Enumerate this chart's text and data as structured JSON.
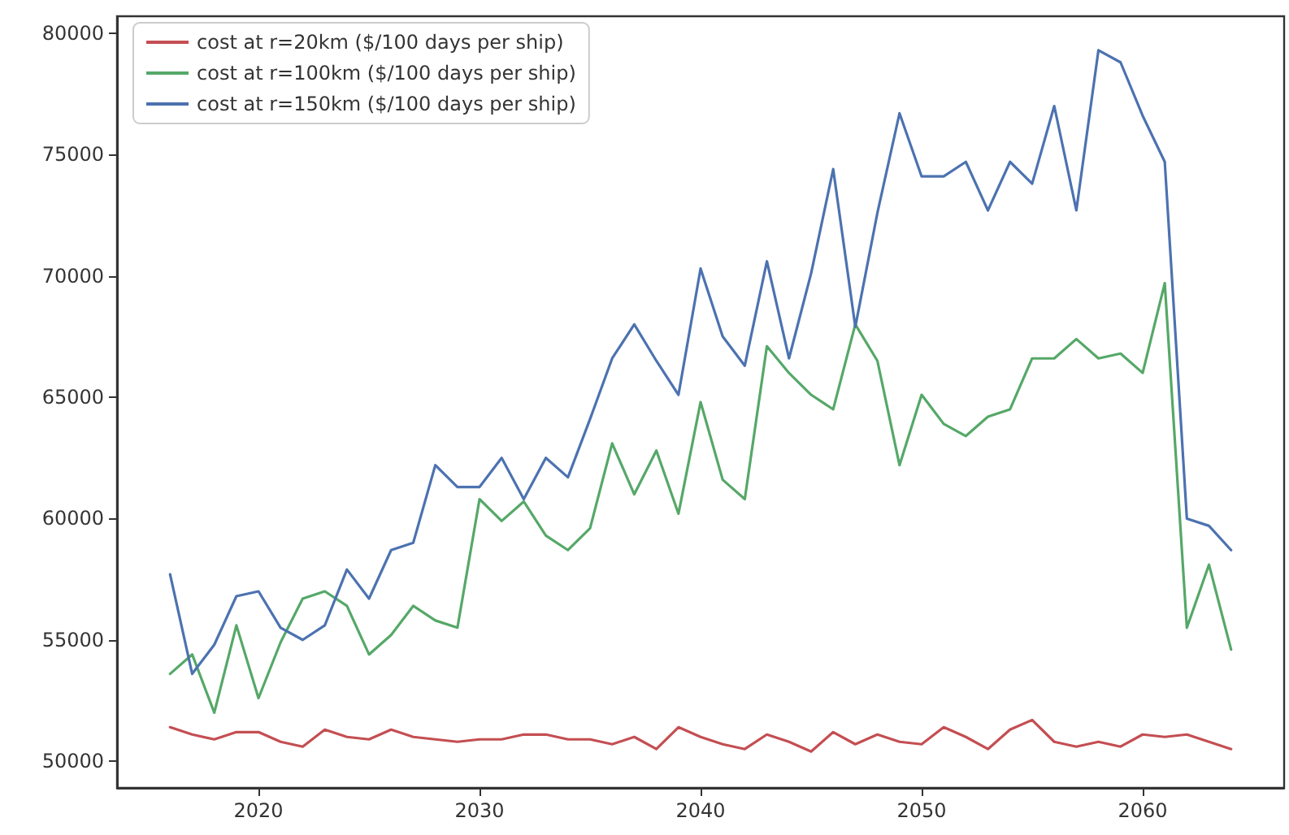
{
  "chart_data": {
    "type": "line",
    "x": [
      2016,
      2017,
      2018,
      2019,
      2020,
      2021,
      2022,
      2023,
      2024,
      2025,
      2026,
      2027,
      2028,
      2029,
      2030,
      2031,
      2032,
      2033,
      2034,
      2035,
      2036,
      2037,
      2038,
      2039,
      2040,
      2041,
      2042,
      2043,
      2044,
      2045,
      2046,
      2047,
      2048,
      2049,
      2050,
      2051,
      2052,
      2053,
      2054,
      2055,
      2056,
      2057,
      2058,
      2059,
      2060,
      2061,
      2062,
      2063,
      2064
    ],
    "series": [
      {
        "name": "cost at r=20km ($/100 days per ship)",
        "color": "#c44e52",
        "values": [
          51400,
          51100,
          50900,
          51200,
          51200,
          50800,
          50600,
          51300,
          51000,
          50900,
          51300,
          51000,
          50900,
          50800,
          50900,
          50900,
          51100,
          51100,
          50900,
          50900,
          50700,
          51000,
          50500,
          51400,
          51000,
          50700,
          50500,
          51100,
          50800,
          50400,
          51200,
          50700,
          51100,
          50800,
          50700,
          51400,
          51000,
          50500,
          51300,
          51700,
          50800,
          50600,
          50800,
          50600,
          51100,
          51000,
          51100,
          50800,
          50500
        ]
      },
      {
        "name": "cost at r=100km ($/100 days per ship)",
        "color": "#55a868",
        "values": [
          53600,
          54400,
          52000,
          55600,
          52600,
          54900,
          56700,
          57000,
          56400,
          54400,
          55200,
          56400,
          55800,
          55500,
          60800,
          59900,
          60700,
          59300,
          58700,
          59600,
          63100,
          61000,
          62800,
          60200,
          64800,
          61600,
          60800,
          67100,
          66000,
          65100,
          64500,
          68000,
          66500,
          62200,
          65100,
          63900,
          63400,
          64200,
          64500,
          66600,
          66600,
          67400,
          66600,
          66800,
          66000,
          69700,
          55500,
          58100,
          54600
        ]
      },
      {
        "name": "cost at r=150km ($/100 days per ship)",
        "color": "#4c72b0",
        "values": [
          57700,
          53600,
          54800,
          56800,
          57000,
          55500,
          55000,
          55600,
          57900,
          56700,
          58700,
          59000,
          62200,
          61300,
          61300,
          62500,
          60800,
          62500,
          61700,
          64100,
          66600,
          68000,
          66500,
          65100,
          70300,
          67500,
          66300,
          70600,
          66600,
          70100,
          74400,
          67900,
          72600,
          76700,
          74100,
          74100,
          74700,
          72700,
          74700,
          73800,
          77000,
          72700,
          79300,
          78800,
          76600,
          74700,
          60000,
          59700,
          58700
        ]
      }
    ],
    "xlim": [
      2013.6,
      2066.4
    ],
    "xticks": [
      2020,
      2030,
      2040,
      2050,
      2060
    ],
    "ylim": [
      48900,
      80700
    ],
    "yticks": [
      50000,
      55000,
      60000,
      65000,
      70000,
      75000,
      80000
    ],
    "grid": false,
    "legend": "top left",
    "marker": "none",
    "line_style": "solid"
  }
}
